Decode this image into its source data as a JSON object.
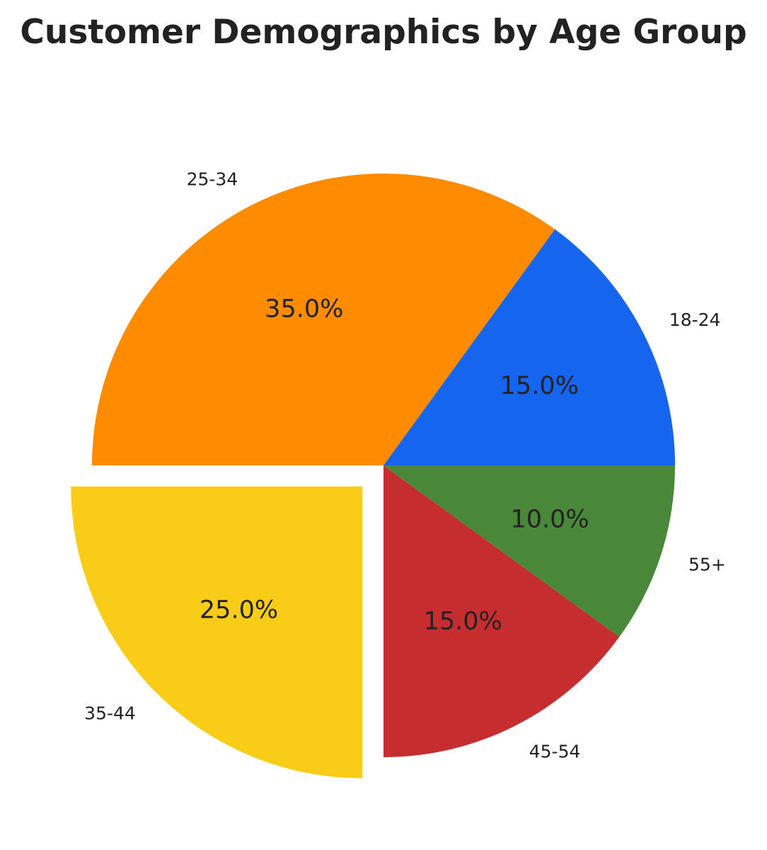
{
  "chart_data": {
    "type": "pie",
    "title": "Customer Demographics by Age Group",
    "categories": [
      "18-24",
      "25-34",
      "35-44",
      "45-54",
      "55+"
    ],
    "values": [
      15.0,
      35.0,
      25.0,
      15.0,
      10.0
    ],
    "percent_labels": [
      "15.0%",
      "35.0%",
      "25.0%",
      "15.0%",
      "10.0%"
    ],
    "colors": [
      "#1565EE",
      "#FF8C00",
      "#F8CC17",
      "#C62D2F",
      "#488838"
    ],
    "exploded": [
      false,
      false,
      true,
      false,
      false
    ],
    "start_angle_deg": 0,
    "direction": "counterclockwise",
    "legend": "none"
  }
}
